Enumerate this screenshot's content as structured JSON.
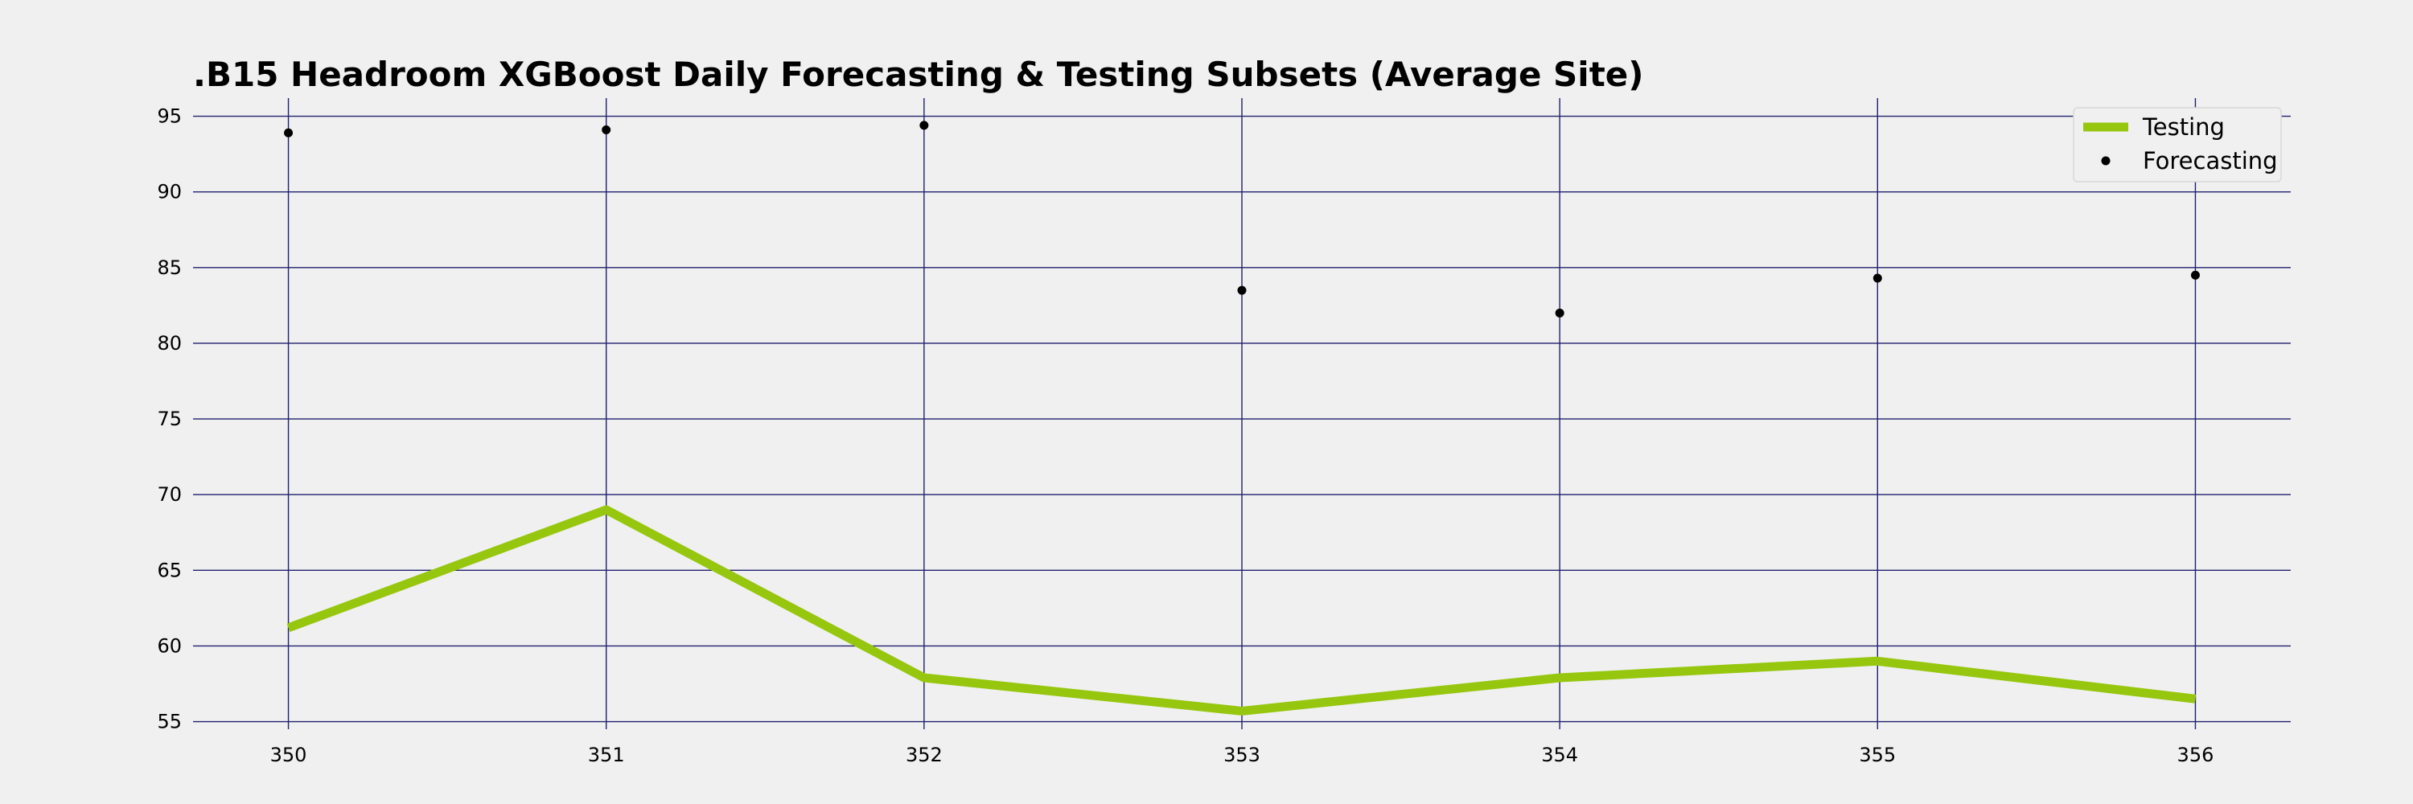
{
  "chart_data": {
    "type": "line",
    "title": ".B15 Headroom XGBoost Daily Forecasting & Testing Subsets (Average Site)",
    "xlabel": "",
    "ylabel": "",
    "x": [
      350,
      351,
      352,
      353,
      354,
      355,
      356
    ],
    "xlim": [
      349.7,
      356.3
    ],
    "ylim": [
      54.5,
      96.2
    ],
    "xticks": [
      350,
      351,
      352,
      353,
      354,
      355,
      356
    ],
    "yticks": [
      55,
      60,
      65,
      70,
      75,
      80,
      85,
      90,
      95
    ],
    "grid": true,
    "legend_position": "top-right",
    "series": [
      {
        "name": "Testing",
        "kind": "line",
        "color": "#96c70e",
        "values": [
          61.2,
          69.0,
          57.9,
          55.7,
          57.9,
          59.0,
          56.5
        ]
      },
      {
        "name": "Forecasting",
        "kind": "scatter",
        "color": "#000000",
        "values": [
          93.9,
          94.1,
          94.4,
          83.5,
          82.0,
          84.3,
          84.5
        ]
      }
    ],
    "colors": {
      "grid": "#1f1f6e",
      "background": "#f0f0f0"
    }
  }
}
